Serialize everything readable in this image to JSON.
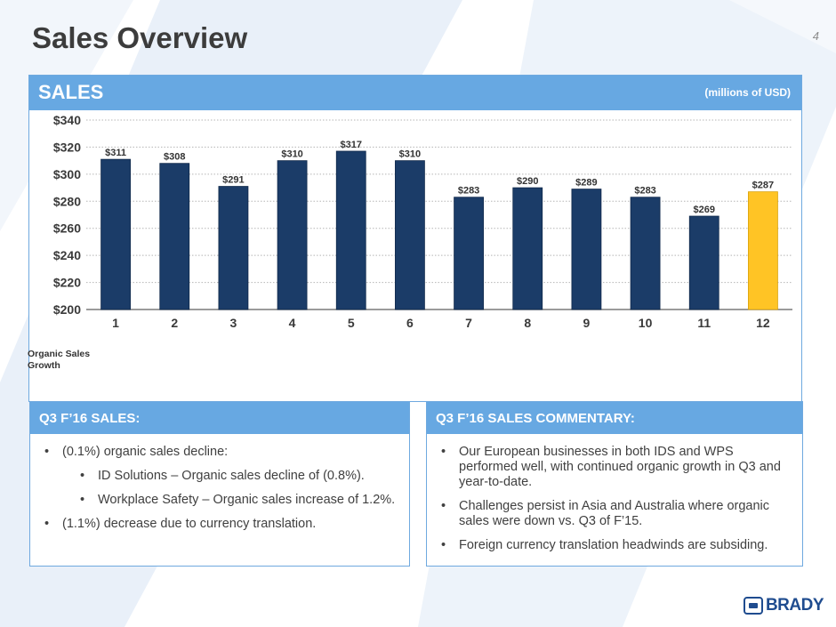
{
  "slide": {
    "title": "Sales Overview",
    "page_number": "4"
  },
  "sales_panel": {
    "title": "SALES",
    "units": "(millions of USD)",
    "footnote_label": "Organic Sales Growth"
  },
  "chart_data": {
    "type": "bar",
    "categories": [
      "1",
      "2",
      "3",
      "4",
      "5",
      "6",
      "7",
      "8",
      "9",
      "10",
      "11",
      "12"
    ],
    "values": [
      311,
      308,
      291,
      310,
      317,
      310,
      283,
      290,
      289,
      283,
      269,
      287
    ],
    "data_labels": [
      "$311",
      "$308",
      "$291",
      "$310",
      "$317",
      "$310",
      "$283",
      "$290",
      "$289",
      "$283",
      "$269",
      "$287"
    ],
    "yticks": [
      200,
      220,
      240,
      260,
      280,
      300,
      320,
      340
    ],
    "ytick_labels": [
      "$200",
      "$220",
      "$240",
      "$260",
      "$280",
      "$300",
      "$320",
      "$340"
    ],
    "ylim": [
      200,
      340
    ],
    "grid": true,
    "colors": {
      "bar": "#1b3c68",
      "highlight_bar": "#ffc425",
      "highlight_index": 11,
      "grid": "#b5b5b5",
      "axis_text": "#3a3a3a"
    },
    "title": "",
    "xlabel": "",
    "ylabel": ""
  },
  "left_panel": {
    "title": "Q3 F’16 SALES:",
    "bullets": [
      "(0.1%) organic sales decline:",
      "ID Solutions – Organic sales decline of (0.8%).",
      "Workplace Safety – Organic sales increase of 1.2%.",
      "(1.1%) decrease due to currency translation."
    ]
  },
  "right_panel": {
    "title": "Q3 F’16 SALES COMMENTARY:",
    "bullets": [
      "Our European businesses in both IDS and WPS performed well, with continued organic growth in Q3 and year-to-date.",
      "Challenges persist in Asia and Australia where organic sales were down vs. Q3 of F’15.",
      "Foreign currency translation headwinds are subsiding."
    ]
  },
  "logo": {
    "text": "BRADY",
    "icon": "brady-logo-mark-icon"
  },
  "theme": {
    "header_blue": "#67a8e2",
    "background_light_blue": "#e6eef8"
  }
}
